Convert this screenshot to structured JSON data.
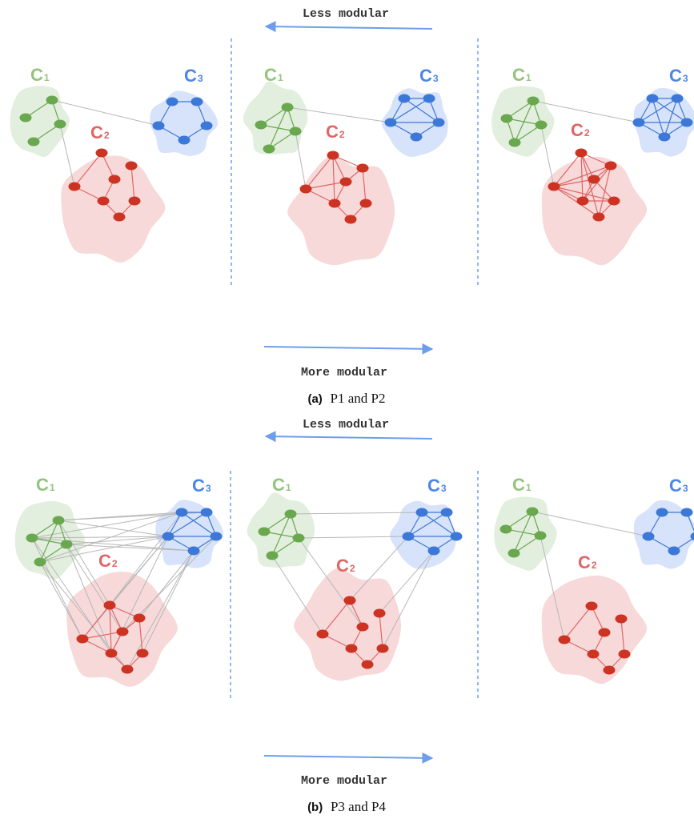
{
  "panels": [
    {
      "less_label": "Less modular",
      "more_label": "More modular",
      "caption_letter": "(a)",
      "caption_text": "P1 and P2"
    },
    {
      "less_label": "Less modular",
      "more_label": "More modular",
      "caption_letter": "(b)",
      "caption_text": "P3 and P4"
    }
  ],
  "communities": [
    {
      "key": "C1",
      "letter": "C",
      "subscript": "1",
      "color": "#93c47d",
      "node_color": "#6aa84f",
      "edge_color": "#6aa84f",
      "fill": "#d9ead3"
    },
    {
      "key": "C2",
      "letter": "C",
      "subscript": "2",
      "color": "#e06666",
      "node_color": "#cc3322",
      "edge_color": "#e06666",
      "fill": "#f4cccc"
    },
    {
      "key": "C3",
      "letter": "C",
      "subscript": "3",
      "color": "#4a86e8",
      "node_color": "#3c78d8",
      "edge_color": "#3c78d8",
      "fill": "#c9daf8"
    }
  ],
  "colors": {
    "arrow": "#6d9eeb",
    "divider": "#4a86e8",
    "inter_edge": "#b7b7b7",
    "text": "#333333"
  }
}
